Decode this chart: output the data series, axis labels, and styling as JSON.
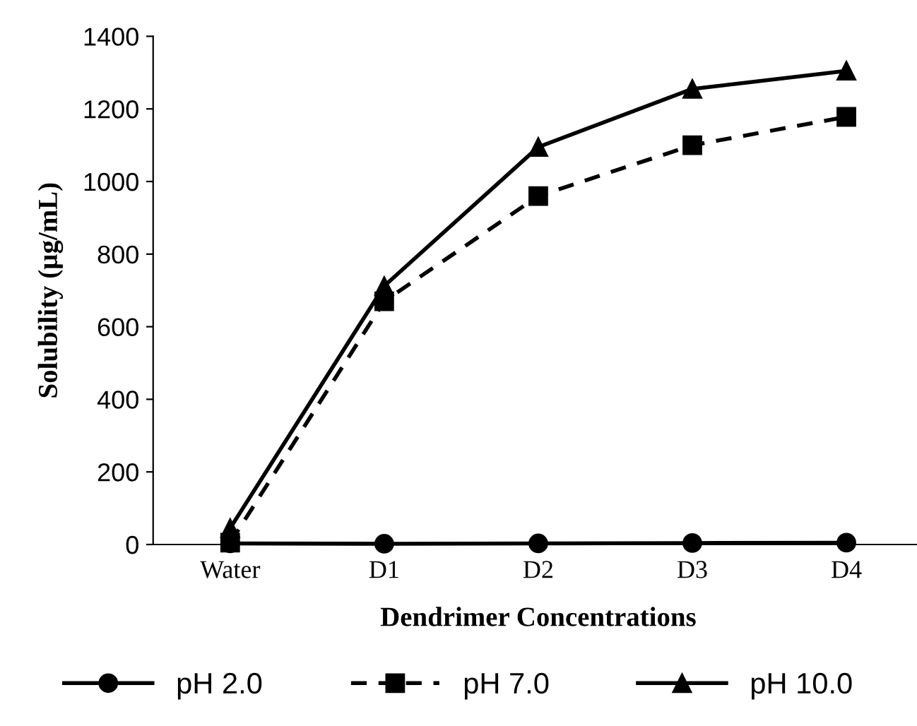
{
  "chart_data": {
    "type": "line",
    "xlabel": "Dendrimer Concentrations",
    "ylabel": "Solubility (µg/mL)",
    "categories": [
      "Water",
      "D1",
      "D2",
      "D3",
      "D4"
    ],
    "series": [
      {
        "name": "pH 2.0",
        "color": "#000000",
        "marker": "circle",
        "line_style": "solid",
        "values": [
          3,
          2,
          3,
          4,
          5
        ]
      },
      {
        "name": "pH 7.0",
        "color": "#000000",
        "marker": "square",
        "line_style": "dashed",
        "values": [
          5,
          670,
          960,
          1100,
          1178
        ]
      },
      {
        "name": "pH 10.0",
        "color": "#000000",
        "marker": "triangle",
        "line_style": "solid",
        "values": [
          45,
          712,
          1095,
          1255,
          1305
        ]
      }
    ],
    "ylim": [
      0,
      1400
    ],
    "yticks": [
      0,
      200,
      400,
      600,
      800,
      1000,
      1200,
      1400
    ],
    "grid": false,
    "legend": "bottom"
  }
}
